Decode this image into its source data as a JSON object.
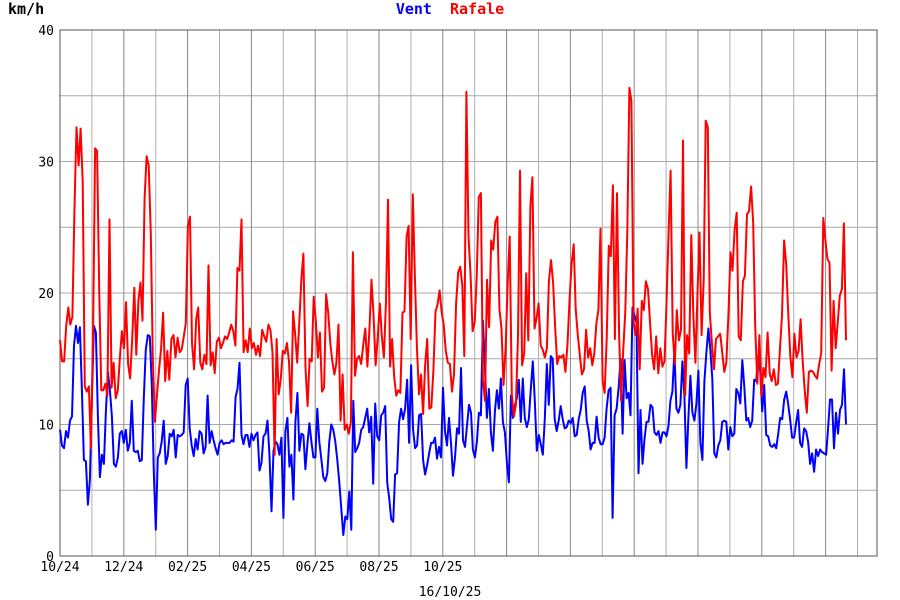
{
  "chart_data": {
    "type": "line",
    "unit_label": "km/h",
    "xlabel": "16/10/25",
    "ylim": [
      0,
      40
    ],
    "y_ticks": [
      "0",
      "10",
      "20",
      "30",
      "40"
    ],
    "x_ticks": [
      "10/24",
      "12/24",
      "02/25",
      "04/25",
      "06/25",
      "08/25",
      "10/25"
    ],
    "grid": true,
    "legend_position": "top-center",
    "series": [
      {
        "name": "Vent",
        "color": "#0000ff",
        "values": [
          9.6,
          8.4,
          8.2,
          9.5,
          9,
          10.3,
          10.6,
          16,
          17.5,
          16.2,
          17.4,
          12.6,
          7.3,
          7.2,
          3.9,
          5.8,
          12,
          17.5,
          17,
          10.6,
          6,
          7.7,
          7,
          11,
          14,
          12.6,
          10.6,
          7,
          6.8,
          7.5,
          9.3,
          9.5,
          8.6,
          9.6,
          8,
          8.6,
          11.8,
          8,
          7.9,
          8,
          7.2,
          7.3,
          12,
          15.7,
          16.8,
          16.7,
          13,
          6.4,
          2,
          7.5,
          7.8,
          8.7,
          10.3,
          7,
          7.6,
          9.3,
          9.1,
          9.6,
          7.5,
          9.2,
          9.1,
          9.2,
          9.4,
          13,
          13.5,
          9.7,
          8.4,
          7.6,
          8.9,
          8.1,
          9.5,
          9.3,
          7.8,
          8.3,
          12.2,
          8.6,
          9.5,
          8.8,
          8.2,
          7.7,
          8.6,
          8.8,
          8.5,
          8.6,
          8.6,
          8.6,
          8.8,
          8.7,
          12.1,
          12.7,
          14.7,
          9.2,
          8.5,
          9.2,
          9.2,
          8.3,
          9.3,
          8.8,
          9.2,
          9.4,
          6.5,
          7.1,
          9.1,
          9.3,
          10.3,
          7.6,
          3.4,
          8,
          8.7,
          8.5,
          7.7,
          9,
          2.9,
          9.5,
          10.5,
          6.8,
          7.7,
          4.3,
          10.2,
          12.4,
          8,
          9.3,
          9.2,
          6.6,
          8.5,
          10.1,
          8.7,
          7.5,
          7.5,
          11.2,
          8.7,
          7.4,
          6,
          5.7,
          6.3,
          8.7,
          10,
          9.6,
          8.7,
          7.3,
          5.6,
          3.6,
          1.6,
          3,
          2.8,
          4.9,
          2,
          11.8,
          7.9,
          8.2,
          8.6,
          9.6,
          9.8,
          10.5,
          11.2,
          9.4,
          10.6,
          5.5,
          11.6,
          9.1,
          8.8,
          10.7,
          10.9,
          11.4,
          5.6,
          4.4,
          2.8,
          2.6,
          6.2,
          6.3,
          10.2,
          11.2,
          10.4,
          11.2,
          13.4,
          8.6,
          14.5,
          9.6,
          8.2,
          8.4,
          10.7,
          10.8,
          7.3,
          6.2,
          6.9,
          7.8,
          8.6,
          8.6,
          9,
          7.4,
          8.3,
          7.5,
          12.8,
          9.5,
          8.4,
          10.5,
          8.6,
          6.1,
          7.5,
          9.7,
          9.3,
          14.3,
          8.8,
          8.3,
          9.9,
          11.5,
          10.9,
          8.1,
          7.5,
          8.7,
          10.9,
          10.7,
          17.9,
          14.4,
          10.5,
          12.7,
          9.4,
          8,
          11,
          12.6,
          11.2,
          13.5,
          10.2,
          9.4,
          7.1,
          5.6,
          12.2,
          10.5,
          11.4,
          12,
          13.4,
          10.2,
          13.5,
          10.5,
          9.8,
          10.4,
          12.7,
          14.8,
          11.8,
          8,
          9.2,
          8.5,
          7.7,
          10.4,
          14.6,
          11.5,
          15.2,
          15,
          10.4,
          9.5,
          10.3,
          11.4,
          10.4,
          9.7,
          9.8,
          10.3,
          10.1,
          10.5,
          9.1,
          9.2,
          10.4,
          11.1,
          12.4,
          12.9,
          10.3,
          9.5,
          8.1,
          8.6,
          8.6,
          10.6,
          9,
          8.5,
          8.5,
          9,
          11.2,
          12.6,
          12.8,
          2.9,
          10.7,
          11.2,
          12.8,
          15,
          9.3,
          14.9,
          12,
          12.4,
          10.7,
          18.9,
          18.3,
          17.7,
          6.3,
          11.1,
          7,
          8.9,
          10.2,
          10.2,
          11.5,
          11.3,
          9.4,
          9.2,
          9.5,
          8.6,
          9.4,
          9.4,
          9.1,
          9.9,
          11.8,
          12.5,
          15.6,
          11.2,
          10.9,
          11.5,
          14.8,
          12.2,
          6.7,
          10.5,
          13.7,
          10.9,
          10.3,
          11.6,
          14.1,
          8.6,
          7.3,
          13.3,
          15.5,
          17.3,
          15.7,
          13.5,
          7.8,
          7.5,
          8.4,
          8.8,
          10.2,
          10.3,
          10.2,
          8.1,
          9.8,
          9.1,
          9.3,
          12.7,
          12.4,
          11.6,
          14.9,
          12.9,
          10.3,
          10.5,
          9.8,
          10.3,
          13.4,
          13.3,
          15.2,
          14.1,
          11,
          13,
          9.2,
          9.1,
          8.4,
          8.3,
          8.5,
          8.2,
          9.3,
          10.5,
          10.4,
          11.9,
          12.5,
          11.6,
          10.4,
          9,
          9,
          10.1,
          11.1,
          8.6,
          8.3,
          9.7,
          9.5,
          8.7,
          7,
          7.8,
          6.4,
          8.1,
          7.6,
          8.1,
          7.9,
          7.8,
          7.7,
          9.6,
          11.9,
          11.9,
          8.2,
          10.9,
          9.3,
          11.1,
          11.5,
          14.2,
          10
        ]
      },
      {
        "name": "Rafale",
        "color": "#ff0000",
        "values": [
          16.4,
          14.8,
          14.8,
          17.5,
          18.9,
          17.6,
          18.2,
          26.2,
          32.6,
          29.7,
          32.5,
          28.5,
          12.9,
          12.5,
          12.9,
          8.2,
          16.5,
          31,
          30.8,
          20.3,
          12.6,
          12.6,
          13.1,
          12.2,
          25.6,
          12.8,
          14.7,
          12,
          12.6,
          15,
          17.1,
          15.8,
          19.3,
          14.6,
          13.5,
          16.5,
          20.4,
          15.3,
          19.4,
          20.8,
          17.9,
          27.2,
          30.4,
          29.7,
          24.5,
          15.1,
          10.2,
          12.3,
          14.1,
          15.8,
          18.5,
          13.3,
          15.6,
          13.4,
          16.5,
          16.8,
          15.1,
          16.6,
          15.5,
          15.7,
          16.7,
          17.7,
          25.1,
          25.8,
          16.2,
          14.2,
          18,
          18.9,
          14.7,
          14.2,
          15.3,
          14.6,
          22.1,
          14.5,
          15.5,
          13.9,
          16.3,
          16.6,
          15.8,
          16.2,
          16.7,
          16.5,
          17,
          17.6,
          17.1,
          16,
          21.9,
          21.7,
          25.6,
          15.5,
          16.4,
          15.5,
          17.3,
          15.8,
          16.2,
          15.3,
          16,
          15.2,
          17.2,
          16.7,
          16.3,
          17.6,
          17.2,
          15.5,
          7.7,
          16.5,
          12.3,
          13.4,
          15.6,
          15.4,
          16.2,
          14.8,
          10.9,
          18.6,
          16.8,
          14.7,
          17.8,
          21.1,
          23,
          14.3,
          11.4,
          15,
          14.8,
          19.7,
          17.9,
          15.1,
          17,
          12.5,
          12.8,
          19.9,
          18.5,
          16.2,
          14.8,
          13.8,
          14.7,
          17.6,
          10.3,
          13.8,
          9.6,
          10,
          9.3,
          10.2,
          23.1,
          13.7,
          15,
          15.2,
          14.6,
          16.1,
          17.3,
          14.4,
          17.2,
          21,
          18.2,
          14.5,
          16.6,
          19.2,
          16.7,
          15.1,
          19.4,
          27.1,
          14.4,
          16.5,
          13.6,
          12.2,
          12.6,
          12.4,
          18.5,
          18.6,
          24.3,
          25.1,
          16.5,
          27.5,
          21.5,
          15.9,
          12.3,
          13.8,
          10.8,
          14.5,
          16.5,
          11.2,
          11.3,
          14.1,
          18.6,
          19.1,
          20.2,
          18.5,
          17.6,
          15.6,
          14.7,
          14.6,
          12.5,
          13.8,
          19.2,
          21.6,
          22,
          20.6,
          15.2,
          35.3,
          24.3,
          21.5,
          17.1,
          17.8,
          21.2,
          27.3,
          27.6,
          13.4,
          11.8,
          21,
          17.4,
          24,
          23.3,
          25.4,
          25.8,
          18.8,
          17.3,
          13,
          15.8,
          20.8,
          24.3,
          12.3,
          10.6,
          11.5,
          16.7,
          29.3,
          14.5,
          15.4,
          21.5,
          16.4,
          26.6,
          28.8,
          17.3,
          18.1,
          19.2,
          16,
          15.7,
          15.1,
          15.8,
          20.9,
          22.5,
          20.8,
          17.5,
          14.6,
          15.2,
          15.1,
          15.3,
          14,
          16.1,
          19.6,
          22.2,
          23.7,
          18.8,
          16.8,
          15.2,
          13.8,
          14.2,
          17.2,
          15.1,
          15.8,
          14.5,
          15.4,
          17.7,
          18.7,
          24.9,
          13.3,
          12.4,
          16.5,
          23.6,
          22.8,
          28.2,
          16.5,
          27.6,
          16.9,
          11.8,
          15.6,
          18.6,
          24.6,
          35.6,
          34.6,
          17.8,
          16.8,
          18.8,
          14.2,
          19.4,
          18.7,
          20.9,
          20.3,
          17.8,
          15.3,
          14.2,
          16.7,
          13.9,
          15.8,
          14.4,
          14.8,
          19.2,
          24.6,
          29.3,
          17,
          14.6,
          18.7,
          16.4,
          17.2,
          31.6,
          12.2,
          16.8,
          15.4,
          24.4,
          18.4,
          14.7,
          20,
          24.6,
          16.8,
          21,
          33.1,
          32.6,
          18.5,
          16.2,
          14.2,
          16.5,
          16.7,
          16.9,
          15.5,
          14,
          14.7,
          18.3,
          23.1,
          21.7,
          24.8,
          26.1,
          16.7,
          16.4,
          20.9,
          21.3,
          26,
          26.2,
          28.1,
          25.3,
          17.5,
          13.1,
          16.8,
          12.1,
          14.3,
          13.6,
          17,
          13.9,
          13.3,
          14.2,
          13,
          13.1,
          15.8,
          18.3,
          24,
          22.2,
          18.5,
          15.2,
          13.6,
          16.9,
          15.1,
          15.6,
          18,
          14.8,
          12.6,
          10.9,
          14,
          14.1,
          14,
          13.7,
          13.5,
          14.6,
          15.4,
          25.7,
          24,
          22.6,
          22.3,
          14.1,
          19.4,
          15.8,
          17.7,
          19.8,
          20.3,
          25.3,
          16.4
        ]
      }
    ]
  }
}
